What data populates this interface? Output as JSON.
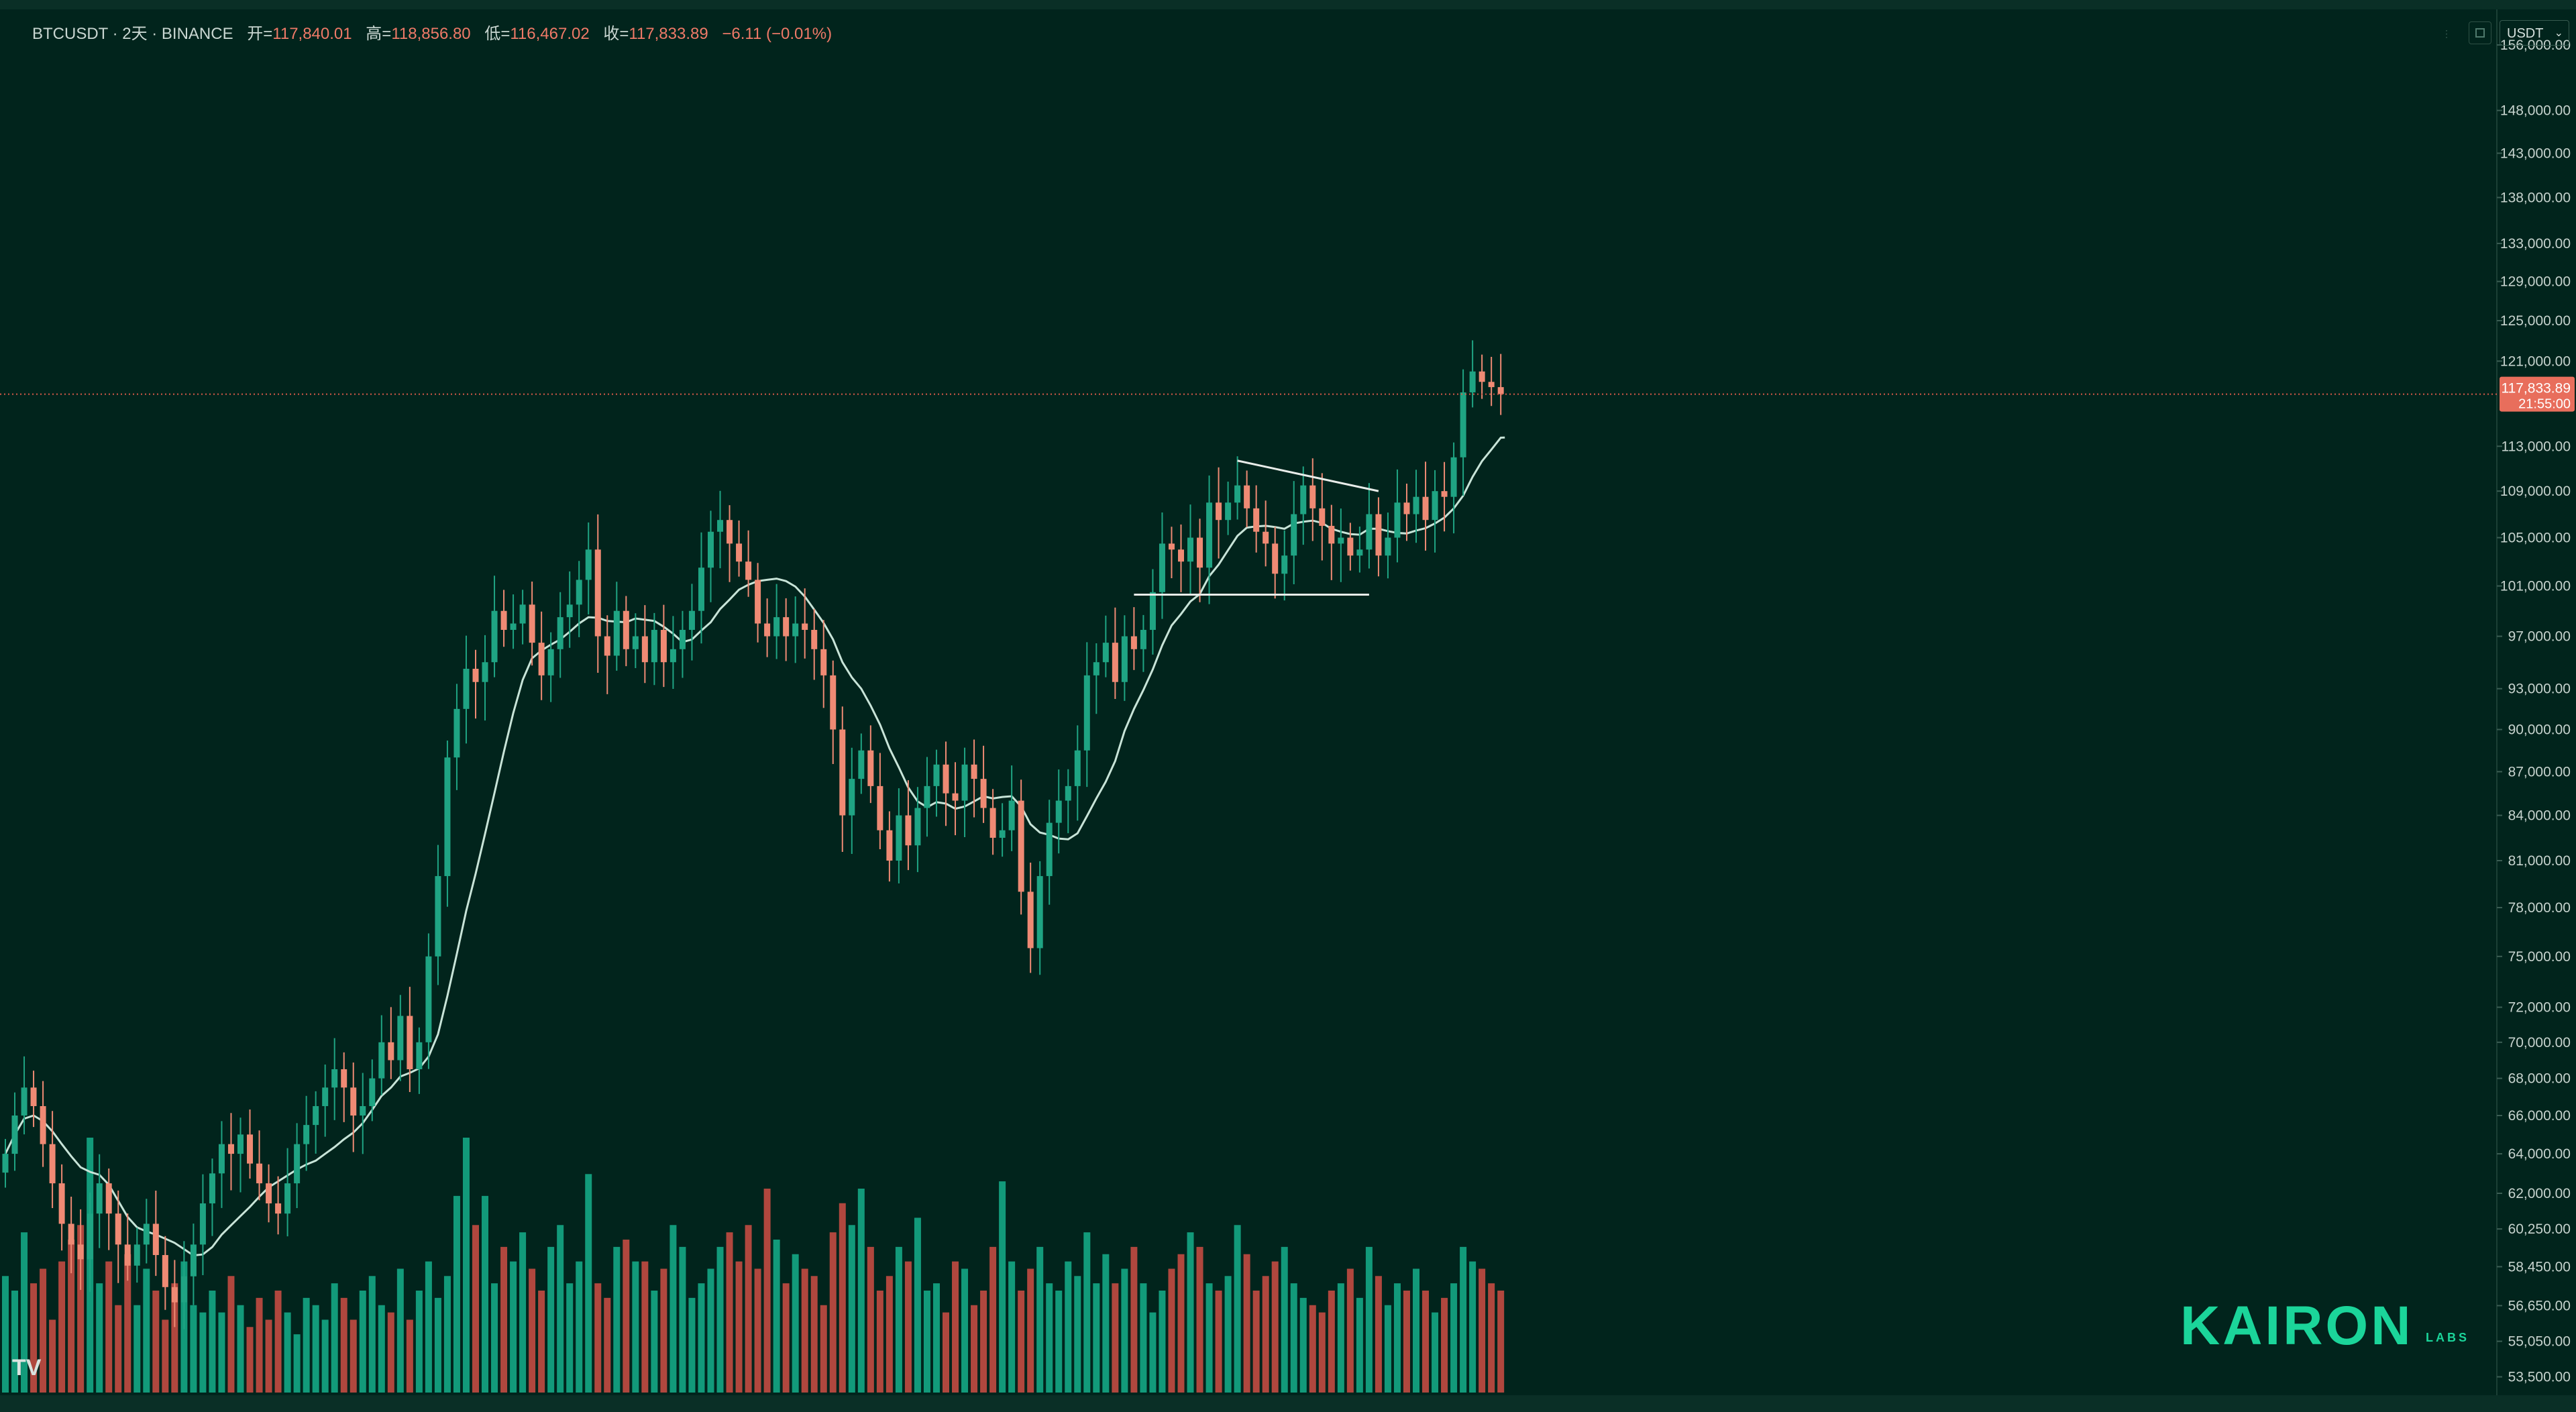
{
  "header": {
    "symbol_line": "BTCUSDT · 2天 · BINANCE",
    "open_label": "开=",
    "open_value": "117,840.01",
    "high_label": "高=",
    "high_value": "118,856.80",
    "low_label": "低=",
    "low_value": "116,467.02",
    "close_label": "收=",
    "close_value": "117,833.89",
    "change_value": "−6.11 (−0.01%)"
  },
  "currency_selector": "USDT",
  "brand": {
    "name": "KAIRON",
    "sub": "LABS"
  },
  "tv_logo": "TV",
  "colors": {
    "background": "#01241c",
    "up": "#1fa483",
    "down": "#ef8a74",
    "ma": "#c8e4d8",
    "price_line": "#d85a49",
    "trendline": "#e8ece9",
    "volume_up": "#129a7a",
    "volume_down": "#b0473e"
  },
  "chart_data": {
    "type": "candlestick",
    "scale": "log",
    "y_ticks": [
      156000,
      148000,
      143000,
      138000,
      133000,
      129000,
      125000,
      121000,
      113000,
      109000,
      105000,
      101000,
      97000,
      93000,
      90000,
      87000,
      84000,
      81000,
      78000,
      75000,
      72000,
      70000,
      68000,
      66000,
      64000,
      62000,
      60250,
      58450,
      56650,
      55050,
      53500
    ],
    "y_tick_labels": [
      "156,000.00",
      "148,000.00",
      "143,000.00",
      "138,000.00",
      "133,000.00",
      "129,000.00",
      "125,000.00",
      "121,000.00",
      "113,000.00",
      "109,000.00",
      "105,000.00",
      "101,000.00",
      "97,000.00",
      "93,000.00",
      "90,000.00",
      "87,000.00",
      "84,000.00",
      "81,000.00",
      "78,000.00",
      "75,000.00",
      "72,000.00",
      "70,000.00",
      "68,000.00",
      "66,000.00",
      "64,000.00",
      "62,000.00",
      "60,250.00",
      "58,450.00",
      "56,650.00",
      "55,050.00",
      "53,500.00"
    ],
    "ylim": [
      53000,
      160000
    ],
    "current_price": 117833.89,
    "current_price_label": "117,833.89",
    "countdown_label": "21:55:00",
    "closes": [
      64000,
      66000,
      67500,
      66500,
      64500,
      62500,
      60500,
      59500,
      58800,
      61000,
      62500,
      61000,
      59500,
      58500,
      59500,
      60500,
      59000,
      57500,
      56800,
      58000,
      59500,
      61500,
      63000,
      64500,
      64000,
      65000,
      63500,
      62500,
      61500,
      61000,
      62500,
      64500,
      65500,
      66500,
      67500,
      68500,
      67500,
      66000,
      66500,
      68000,
      70000,
      69000,
      71500,
      68500,
      70000,
      75000,
      80000,
      88000,
      91500,
      94500,
      93500,
      95000,
      99000,
      97500,
      98000,
      99500,
      96500,
      94000,
      96000,
      98500,
      99500,
      101500,
      104000,
      97000,
      95500,
      99000,
      96000,
      97000,
      95000,
      97500,
      95000,
      96000,
      97500,
      99000,
      102500,
      105500,
      106500,
      104500,
      103000,
      101500,
      98000,
      97000,
      98500,
      97000,
      98000,
      97500,
      96000,
      94000,
      90000,
      84000,
      86500,
      88500,
      86000,
      83000,
      81000,
      84000,
      82000,
      84500,
      86000,
      87500,
      85500,
      85000,
      87500,
      86500,
      84500,
      82500,
      83000,
      85000,
      79000,
      75500,
      80000,
      83500,
      85000,
      86000,
      88500,
      94000,
      95000,
      96500,
      93500,
      97000,
      96000,
      97500,
      100500,
      104500,
      104000,
      103000,
      105000,
      102500,
      108000,
      106500,
      108000,
      109500,
      107500,
      105500,
      104500,
      102000,
      103500,
      107000,
      109500,
      107500,
      106000,
      104500,
      105000,
      103500,
      104000,
      107000,
      103500,
      105000,
      108000,
      107000,
      108500,
      106500,
      109000,
      108500,
      112000,
      118000,
      120000,
      119000,
      118500,
      117834
    ],
    "ma_period": 10,
    "volume_series": [
      32,
      28,
      44,
      30,
      34,
      20,
      36,
      42,
      46,
      70,
      30,
      36,
      24,
      38,
      24,
      34,
      28,
      20,
      30,
      36,
      24,
      22,
      28,
      22,
      32,
      24,
      18,
      26,
      20,
      28,
      22,
      16,
      26,
      24,
      20,
      30,
      26,
      20,
      28,
      32,
      24,
      22,
      34,
      20,
      28,
      36,
      26,
      32,
      54,
      70,
      46,
      54,
      30,
      40,
      36,
      44,
      34,
      28,
      40,
      46,
      30,
      36,
      60,
      30,
      26,
      40,
      42,
      36,
      36,
      28,
      34,
      46,
      40,
      26,
      30,
      34,
      40,
      44,
      36,
      46,
      34,
      56,
      42,
      30,
      38,
      34,
      32,
      24,
      44,
      52,
      46,
      56,
      40,
      28,
      32,
      40,
      36,
      48,
      28,
      30,
      22,
      36,
      34,
      24,
      28,
      40,
      58,
      36,
      28,
      34,
      40,
      30,
      28,
      36,
      32,
      44,
      30,
      38,
      30,
      34,
      40,
      30,
      22,
      28,
      34,
      38,
      44,
      40,
      30,
      28,
      32,
      46,
      38,
      28,
      32,
      36,
      40,
      30,
      26,
      24,
      22,
      28,
      30,
      34,
      26,
      40,
      32,
      24,
      30,
      28,
      34,
      28,
      22,
      26,
      30,
      40,
      36,
      34,
      30,
      28
    ],
    "annotations": [
      {
        "type": "horizontal_segment",
        "price": 100300,
        "from_bar": 120,
        "to_bar": 145
      },
      {
        "type": "trendline",
        "from_bar": 131,
        "from_price": 111700,
        "to_bar": 146,
        "to_price": 109000
      }
    ]
  }
}
